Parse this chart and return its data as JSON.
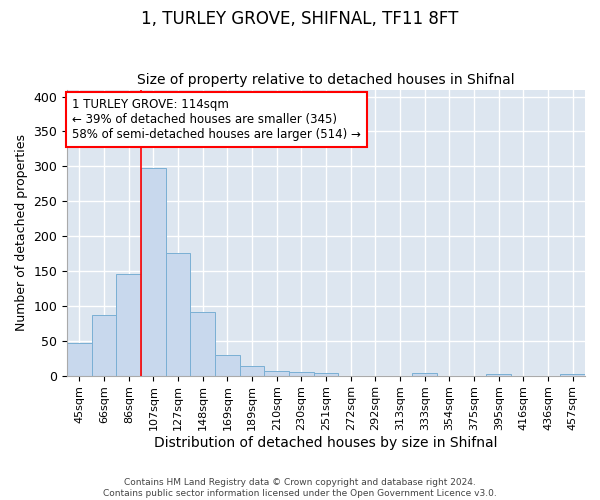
{
  "title": "1, TURLEY GROVE, SHIFNAL, TF11 8FT",
  "subtitle": "Size of property relative to detached houses in Shifnal",
  "xlabel": "Distribution of detached houses by size in Shifnal",
  "ylabel": "Number of detached properties",
  "footer_line1": "Contains HM Land Registry data © Crown copyright and database right 2024.",
  "footer_line2": "Contains public sector information licensed under the Open Government Licence v3.0.",
  "bins": [
    "45sqm",
    "66sqm",
    "86sqm",
    "107sqm",
    "127sqm",
    "148sqm",
    "169sqm",
    "189sqm",
    "210sqm",
    "230sqm",
    "251sqm",
    "272sqm",
    "292sqm",
    "313sqm",
    "333sqm",
    "354sqm",
    "375sqm",
    "395sqm",
    "416sqm",
    "436sqm",
    "457sqm"
  ],
  "values": [
    47,
    87,
    145,
    297,
    176,
    91,
    30,
    14,
    7,
    5,
    4,
    0,
    0,
    0,
    4,
    0,
    0,
    3,
    0,
    0,
    3
  ],
  "bar_color": "#c8d8ed",
  "bar_edge_color": "#7aafd4",
  "bar_edge_width": 0.7,
  "property_line_x": 2.5,
  "property_line_color": "red",
  "annotation_text": "1 TURLEY GROVE: 114sqm\n← 39% of detached houses are smaller (345)\n58% of semi-detached houses are larger (514) →",
  "annotation_box_color": "white",
  "annotation_box_edge": "red",
  "ylim": [
    0,
    410
  ],
  "background_color": "#dde6f0",
  "grid_color": "white",
  "title_fontsize": 12,
  "subtitle_fontsize": 10,
  "tick_fontsize": 8,
  "ylabel_fontsize": 9,
  "xlabel_fontsize": 10,
  "annotation_fontsize": 8.5
}
